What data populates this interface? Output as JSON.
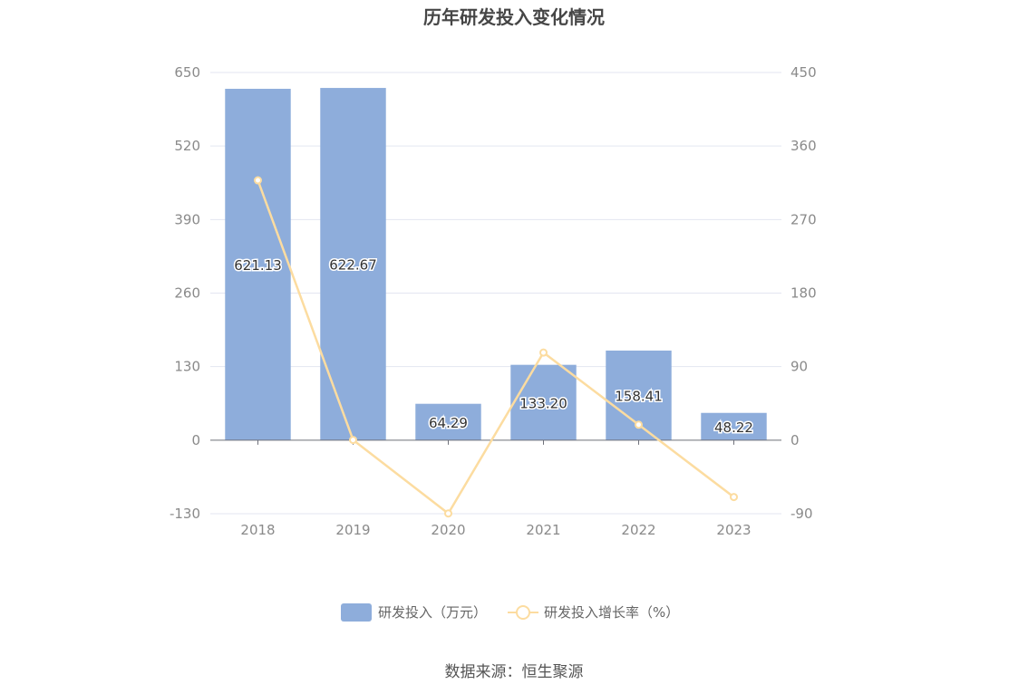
{
  "chart_data": {
    "type": "bar",
    "title": "历年研发投入变化情况",
    "categories": [
      "2018",
      "2019",
      "2020",
      "2021",
      "2022",
      "2023"
    ],
    "series": [
      {
        "name": "研发投入（万元）",
        "type": "bar",
        "axis": "left",
        "color": "#8eaddb",
        "values": [
          621.13,
          622.67,
          64.29,
          133.2,
          158.41,
          48.22
        ],
        "labels": [
          "621.13",
          "622.67",
          "64.29",
          "133.20",
          "158.41",
          "48.22"
        ]
      },
      {
        "name": "研发投入增长率（%）",
        "type": "line",
        "axis": "right",
        "color": "#fcdca0",
        "values": [
          318,
          0.25,
          -89.7,
          107.2,
          18.9,
          -69.6
        ]
      }
    ],
    "y_left": {
      "min": -130,
      "max": 650,
      "ticks": [
        "650",
        "520",
        "390",
        "260",
        "130",
        "0",
        "-130"
      ]
    },
    "y_right": {
      "min": -90,
      "max": 450,
      "ticks": [
        "450",
        "360",
        "270",
        "180",
        "90",
        "0",
        "-90"
      ]
    },
    "grid": true,
    "legend_position": "bottom"
  },
  "source_text": "数据来源：恒生聚源"
}
